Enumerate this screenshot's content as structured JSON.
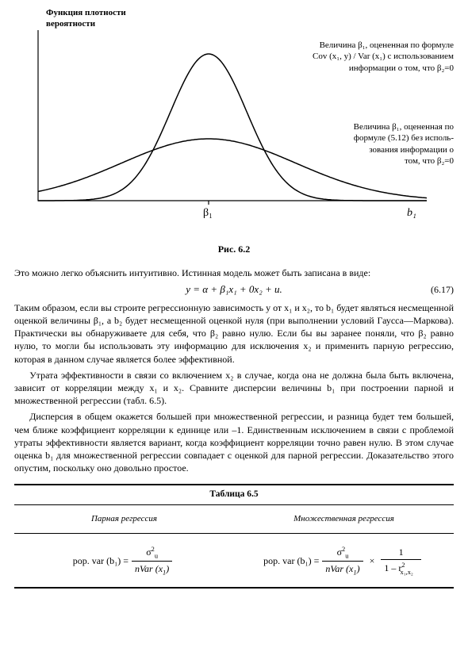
{
  "figure": {
    "ylabel_line1": "Функция плотности",
    "ylabel_line2": "вероятности",
    "annot1_l1": "Величина β₁, оцененная по формуле",
    "annot1_l2": "Cov (x₁, y) / Var (x₁) с использованием",
    "annot1_l3": "информации о том, что β₂=0",
    "annot2_l1": "Величина β₁, оцененная по",
    "annot2_l2": "формуле (5.12) без исполь-",
    "annot2_l3": "зования информации о",
    "annot2_l4": "том, что β₂=0",
    "xlabel_beta": "β₁",
    "xlabel_b": "b₁",
    "caption": "Рис. 6.2",
    "background_color": "#ffffff",
    "curve_color": "#000000",
    "curve_width": 1.5,
    "axis_color": "#000000",
    "axis_width": 1.2,
    "tall_curve": {
      "mu": 245,
      "sigma": 48,
      "height": 185
    },
    "wide_curve": {
      "mu": 245,
      "sigma": 110,
      "height": 78
    },
    "baseline_y": 245,
    "x_range": [
      30,
      520
    ]
  },
  "para1": "Это можно легко объяснить интуитивно. Истинная модель может быть записана в виде:",
  "equation": {
    "text": "y = α + β₁x₁ + 0x₂ + u.",
    "number": "(6.17)"
  },
  "para2": "Таким образом, если вы строите регрессионную зависимость y от x₁ и x₂, то b₁ будет являться несмещенной оценкой величины β₁, а b₂ будет несмещенной оценкой нуля (при выполнении условий Гаусса—Маркова). Практически вы обнаруживаете для себя, что β₂ равно нулю. Если бы вы заранее поняли, что β₂ равно нулю, то могли бы использовать эту информацию для исключения x₂ и применить парную регрессию, которая в данном случае является более эффективной.",
  "para3": "Утрата эффективности в связи со включением x₂ в случае, когда она не должна была быть включена, зависит от корреляции между x₁ и x₂. Сравните дисперсии величины b₁ при построении парной и множественной регрессии (табл. 6.5).",
  "para4": "Дисперсия в общем окажется большей при множественной регрессии, и разница будет тем большей, чем ближе коэффициент корреляции к единице или –1. Единственным исключением в связи с проблемой утраты эффективности является вариант, когда коэффициент корреляции точно равен нулю. В этом случае оценка b₁ для множественной регрессии совпадает с оценкой для парной регрессии. Доказательство этого опустим, поскольку оно довольно простое.",
  "table": {
    "title": "Таблица 6.5",
    "col1": "Парная регрессия",
    "col2": "Множественная регрессия",
    "lhs": "pop. var (b₁) =",
    "frac_num": "σ",
    "frac_num_sup": "2",
    "frac_num_sub": "u",
    "frac_den_pre": "nVar (x",
    "frac_den_sub": "1",
    "frac_den_post": ")",
    "mult": "×",
    "frac2_num": "1",
    "frac2_den_pre": "1 – r",
    "frac2_den_sup": "2",
    "frac2_den_sub": "x₁,x₂"
  }
}
